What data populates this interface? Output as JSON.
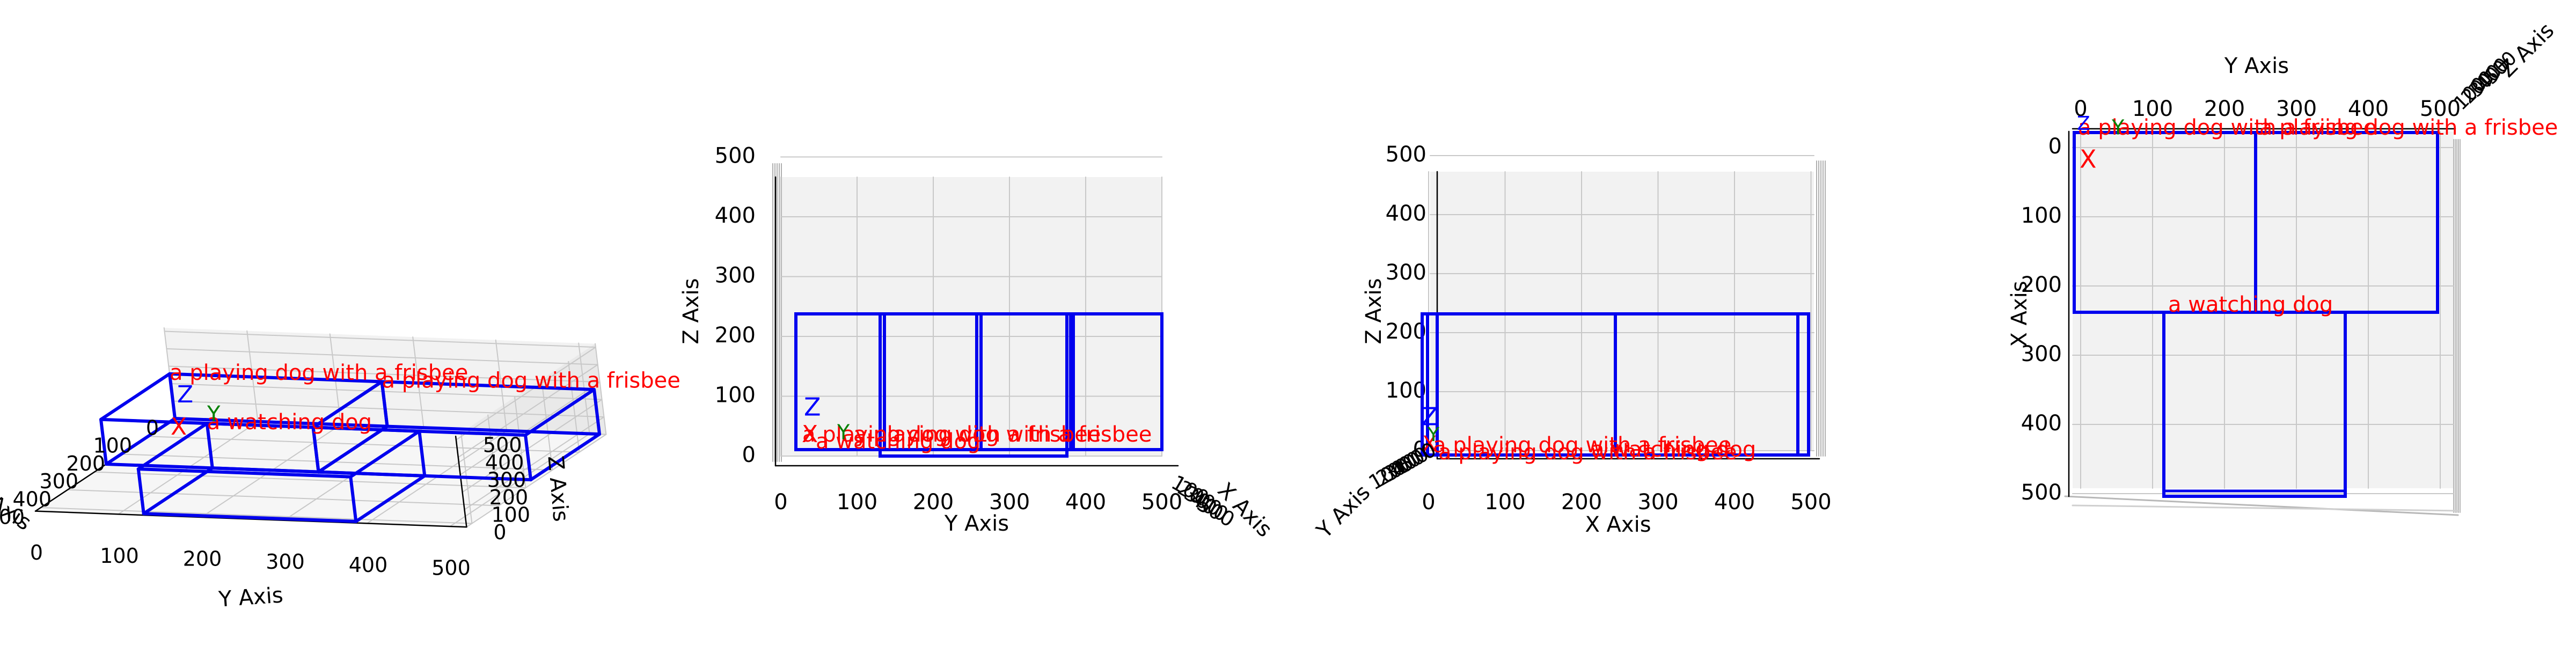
{
  "chart_data": [
    {
      "type": "3d-box-layout",
      "view": "perspective",
      "xlabel": "X Axis",
      "ylabel": "Y Axis",
      "zlabel": "Z Axis",
      "xlim": [
        0,
        500
      ],
      "ylim": [
        0,
        500
      ],
      "zlim": [
        0,
        500
      ],
      "xticks": [
        "0",
        "100",
        "200",
        "300",
        "400",
        "500"
      ],
      "yticks": [
        "0",
        "100",
        "200",
        "300",
        "400",
        "500"
      ],
      "zticks": [
        "0",
        "100",
        "200",
        "300",
        "400",
        "500"
      ],
      "grid": true
    },
    {
      "type": "3d-box-layout",
      "view": "front (Y-Z)",
      "xlabel": "Y Axis",
      "ylabel": "Z Axis",
      "depth_label": "X Axis",
      "xticks": [
        "0",
        "100",
        "200",
        "300",
        "400",
        "500"
      ],
      "yticks": [
        "0",
        "100",
        "200",
        "300",
        "400",
        "500"
      ],
      "depth_ticks": [
        "100",
        "200",
        "300",
        "400",
        "500"
      ],
      "grid": true
    },
    {
      "type": "3d-box-layout",
      "view": "side (X-Z)",
      "xlabel": "X Axis",
      "ylabel": "Z Axis",
      "depth_label": "Y Axis",
      "xticks": [
        "0",
        "100",
        "200",
        "300",
        "400",
        "500"
      ],
      "yticks": [
        "0",
        "100",
        "200",
        "300",
        "400",
        "500"
      ],
      "depth_ticks": [
        "100",
        "200",
        "300",
        "400",
        "500"
      ],
      "grid": true
    },
    {
      "type": "3d-box-layout",
      "view": "top (X-Y)",
      "xlabel": "Y Axis",
      "ylabel": "X Axis",
      "depth_label": "Z Axis",
      "xticks": [
        "0",
        "100",
        "200",
        "300",
        "400",
        "500"
      ],
      "yticks": [
        "0",
        "100",
        "200",
        "300",
        "400",
        "500"
      ],
      "depth_ticks": [
        "100",
        "200",
        "300",
        "400",
        "500"
      ],
      "grid": true
    }
  ],
  "objects": [
    {
      "label": "a playing dog with a frisbee",
      "x": [
        0,
        256
      ],
      "y": [
        0,
        256
      ],
      "z": [
        0,
        256
      ]
    },
    {
      "label": "a playing dog with a frisbee",
      "x": [
        0,
        256
      ],
      "y": [
        256,
        512
      ],
      "z": [
        0,
        256
      ]
    },
    {
      "label": "a watching dog",
      "x": [
        256,
        512
      ],
      "y": [
        128,
        384
      ],
      "z": [
        0,
        256
      ]
    }
  ],
  "axis_markers": {
    "x": "X",
    "y": "Y",
    "z": "Z"
  },
  "colors": {
    "box": "#0000ee",
    "label": "#ff0000",
    "x_marker": "#ff0000",
    "y_marker": "#008000",
    "z_marker": "#0000ff",
    "grid": "#c8c8c8",
    "pane": "#f2f2f2",
    "axis": "#000000"
  }
}
